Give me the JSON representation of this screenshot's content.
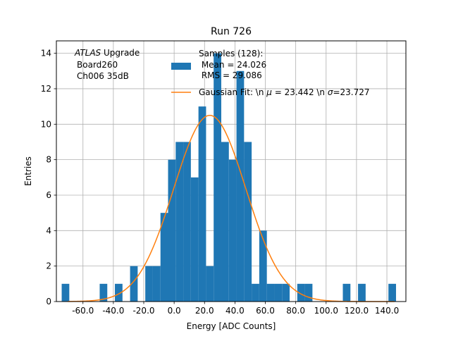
{
  "chart_data": {
    "type": "bar",
    "title": "Run 726",
    "xlabel": "Energy [ADC Counts]",
    "ylabel": "Entries",
    "xlim": [
      -77.5,
      152.5
    ],
    "ylim": [
      0,
      14.7
    ],
    "grid": true,
    "xticks": [
      -60,
      -40,
      -20,
      0,
      20,
      40,
      60,
      80,
      100,
      120,
      140
    ],
    "xtick_labels": [
      "-60.0",
      "-40.0",
      "-20.0",
      "0.0",
      "20.0",
      "40.0",
      "60.0",
      "80.0",
      "100.0",
      "120.0",
      "140.0"
    ],
    "yticks": [
      0,
      2,
      4,
      6,
      8,
      10,
      12,
      14
    ],
    "ytick_labels": [
      "0",
      "2",
      "4",
      "6",
      "8",
      "10",
      "12",
      "14"
    ],
    "annotation": {
      "atlas": "ATLAS",
      "upgrade": " Upgrade",
      "line2": "Board260",
      "line3": "Ch006 35dB"
    },
    "legend": {
      "placement": "top-right",
      "hist_label": {
        "line1": "Samples (128):",
        "line2": " Mean = 24.026",
        "line3": " RMS = 29.086"
      },
      "fit_label": "Gaussian Fit: \\n $\\mu$ = 23.442 \\n $\\sigma$=23.727"
    },
    "series": [
      {
        "type": "histogram",
        "color": "#1f77b4",
        "bin_edges": [
          -74,
          -69,
          -64,
          -59,
          -54,
          -49,
          -44,
          -39,
          -34,
          -29,
          -24,
          -19,
          -14,
          -9,
          -4,
          1,
          6,
          11,
          16,
          21,
          26,
          31,
          36,
          41,
          46,
          51,
          56,
          61,
          66,
          71,
          76,
          81,
          86,
          91,
          96,
          101,
          106,
          111,
          116,
          121,
          126,
          131,
          136,
          141,
          146
        ],
        "counts": [
          1,
          0,
          0,
          0,
          0,
          1,
          0,
          1,
          0,
          2,
          0,
          2,
          2,
          5,
          8,
          9,
          9,
          7,
          11,
          2,
          14,
          9,
          8,
          13,
          9,
          1,
          4,
          1,
          1,
          1,
          0,
          1,
          1,
          0,
          0,
          0,
          0,
          1,
          0,
          1,
          0,
          0,
          0,
          1
        ]
      },
      {
        "type": "line",
        "color": "#ff7f0e",
        "fit": {
          "mu": 23.442,
          "sigma": 23.727,
          "amplitude": 10.5
        }
      }
    ]
  }
}
